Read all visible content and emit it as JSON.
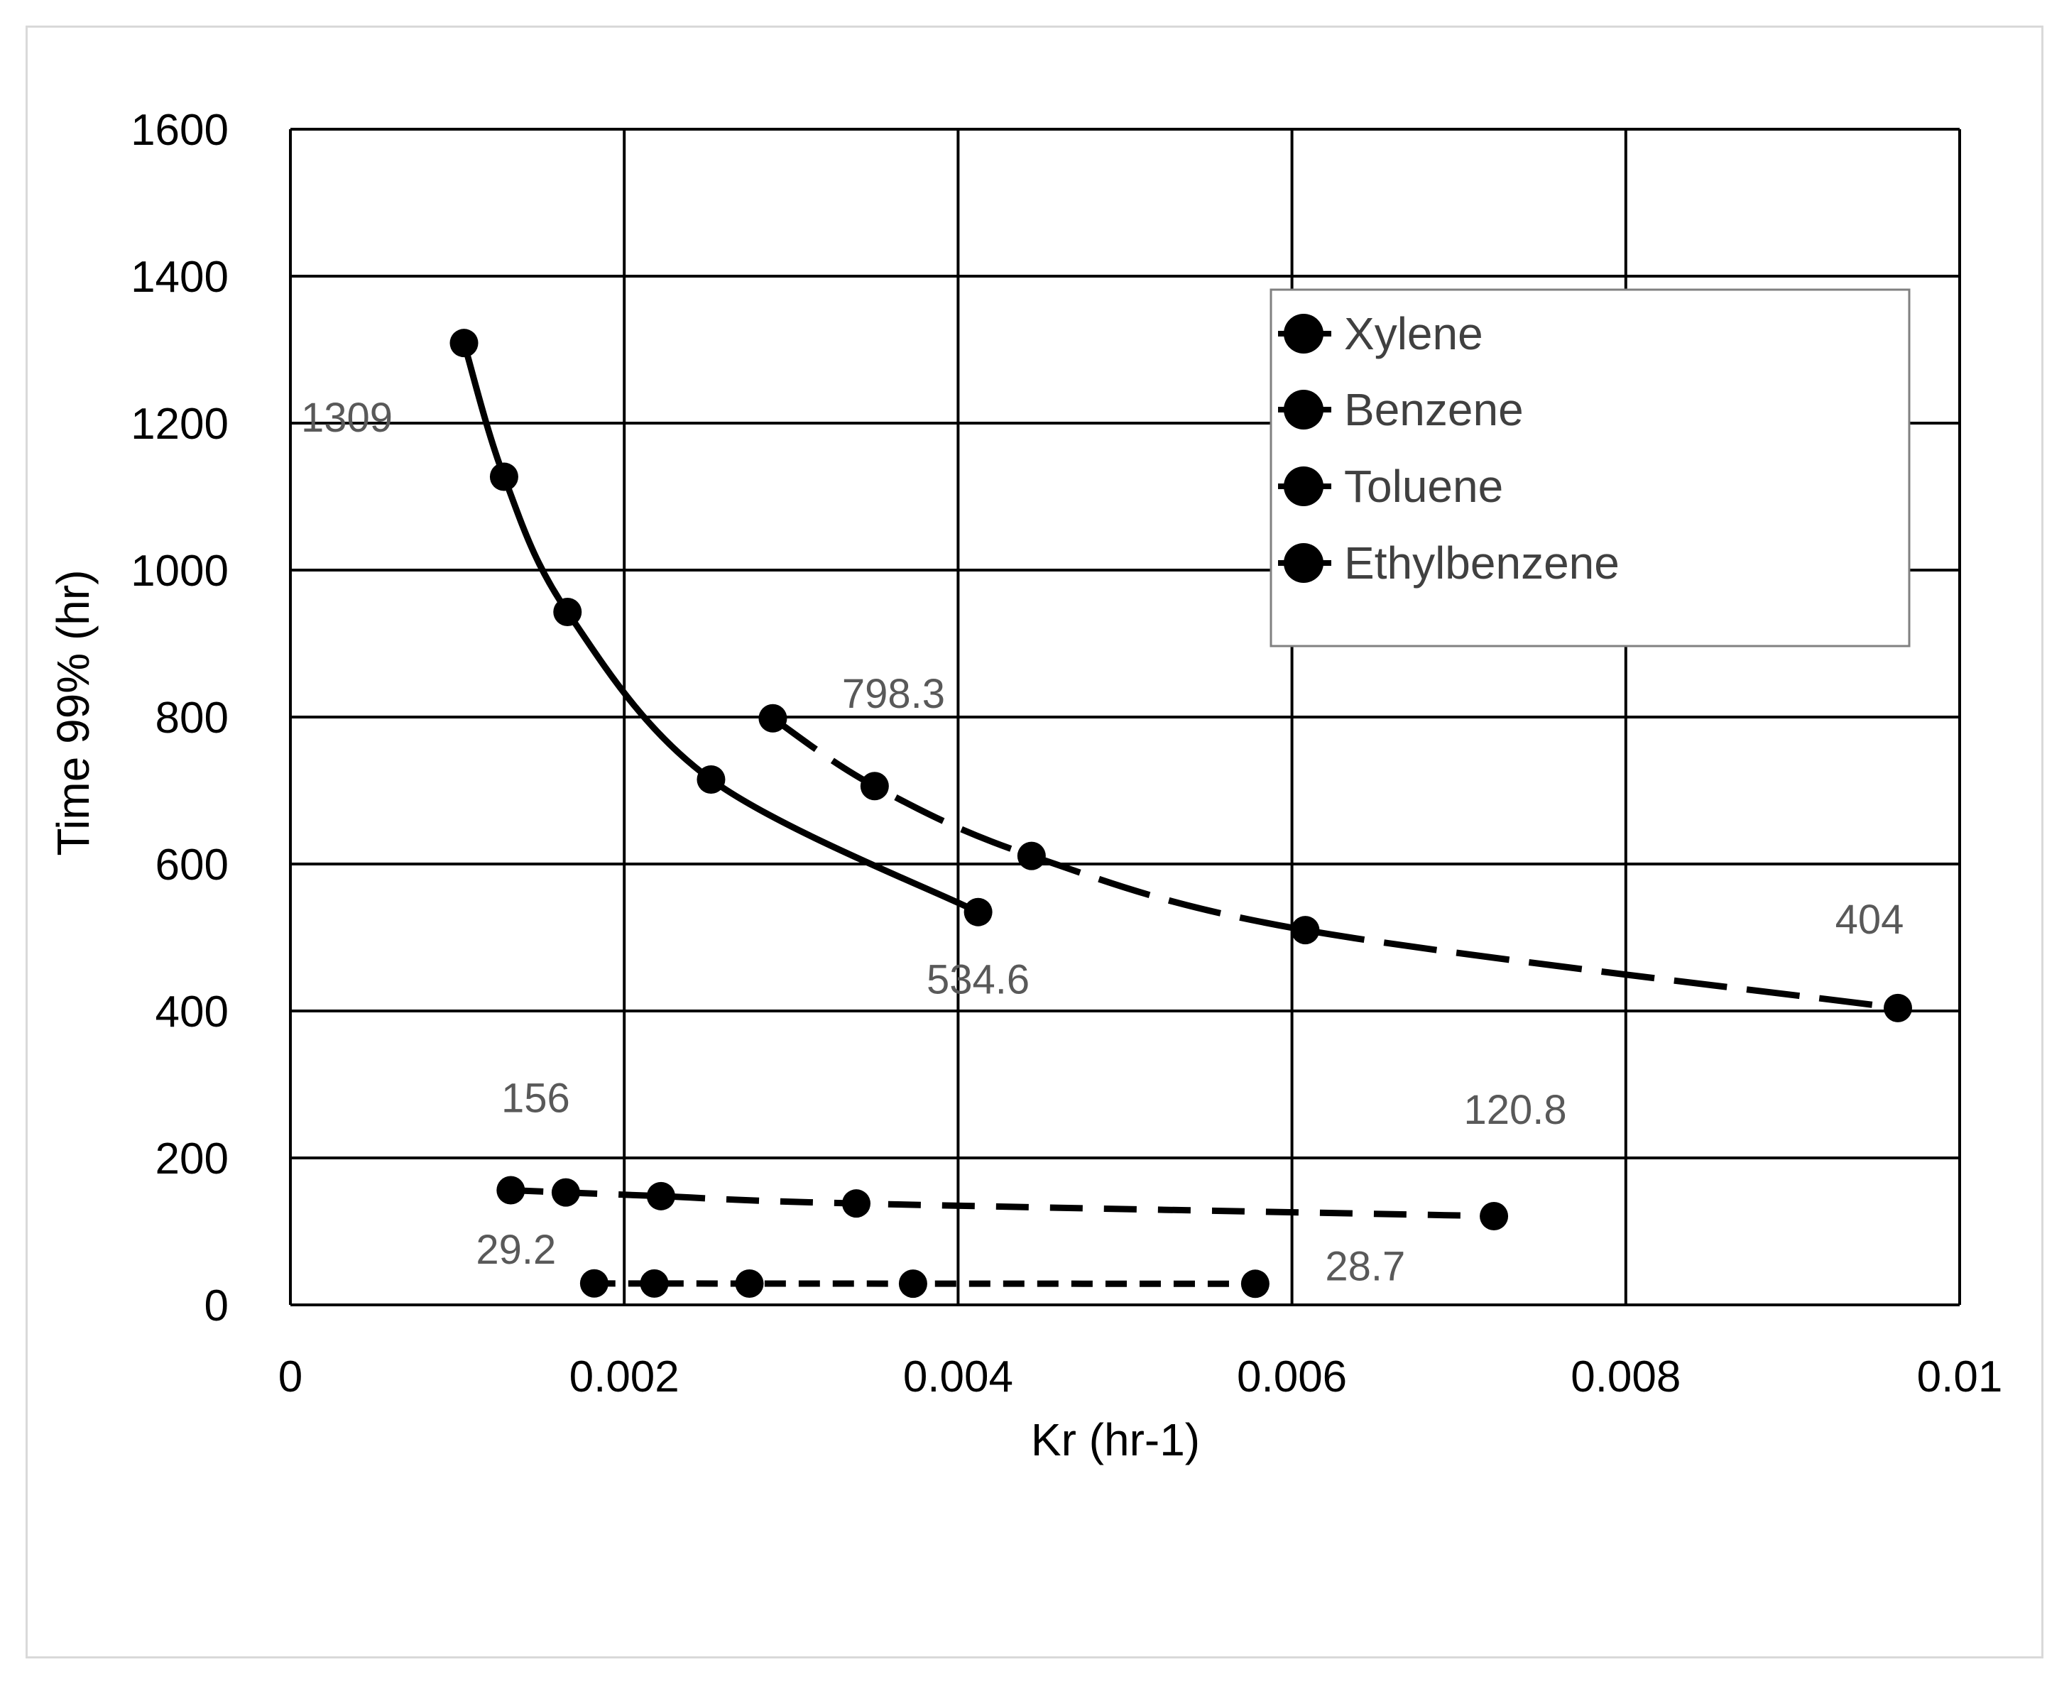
{
  "chart_data": {
    "type": "line",
    "xlabel": "Kr (hr-1)",
    "ylabel": "Time 99% (hr)",
    "xlim": [
      0,
      0.01
    ],
    "ylim": [
      0,
      1600
    ],
    "x_ticks": [
      0,
      0.002,
      0.004,
      0.006,
      0.008,
      0.01
    ],
    "x_tick_labels": [
      "0",
      "0.002",
      "0.004",
      "0.006",
      "0.008",
      "0.01"
    ],
    "y_ticks": [
      0,
      200,
      400,
      600,
      800,
      1000,
      1200,
      1400,
      1600
    ],
    "y_tick_labels": [
      "0",
      "200",
      "400",
      "600",
      "800",
      "1000",
      "1200",
      "1400",
      "1600"
    ],
    "grid": true,
    "legend_position": "top-right",
    "series": [
      {
        "name": "Xylene",
        "line_style": "solid",
        "color": "#000000",
        "x": [
          0.00104,
          0.00128,
          0.00166,
          0.00252,
          0.00412
        ],
        "y": [
          1309,
          1127,
          943,
          715,
          534.6
        ],
        "data_labels": [
          {
            "index": 0,
            "text": "1309"
          },
          {
            "index": 4,
            "text": "534.6"
          }
        ]
      },
      {
        "name": "Benzene",
        "line_style": "long-dash",
        "color": "#000000",
        "x": [
          0.00289,
          0.0035,
          0.00444,
          0.00608,
          0.00963
        ],
        "y": [
          798.3,
          706,
          611,
          510,
          404
        ],
        "data_labels": [
          {
            "index": 0,
            "text": "798.3"
          },
          {
            "index": 4,
            "text": "404"
          }
        ]
      },
      {
        "name": "Toluene",
        "line_style": "dash",
        "color": "#000000",
        "x": [
          0.00132,
          0.00165,
          0.00222,
          0.00339,
          0.00721
        ],
        "y": [
          156,
          153,
          148,
          138,
          120.8
        ],
        "data_labels": [
          {
            "index": 0,
            "text": "156"
          },
          {
            "index": 4,
            "text": "120.8"
          }
        ]
      },
      {
        "name": "Ethylbenzene",
        "line_style": "short-dash",
        "color": "#000000",
        "x": [
          0.00182,
          0.00218,
          0.00275,
          0.00373,
          0.00578
        ],
        "y": [
          29.2,
          29.1,
          29.0,
          28.9,
          28.7
        ],
        "data_labels": [
          {
            "index": 0,
            "text": "29.2"
          },
          {
            "index": 4,
            "text": "28.7"
          }
        ]
      }
    ]
  }
}
